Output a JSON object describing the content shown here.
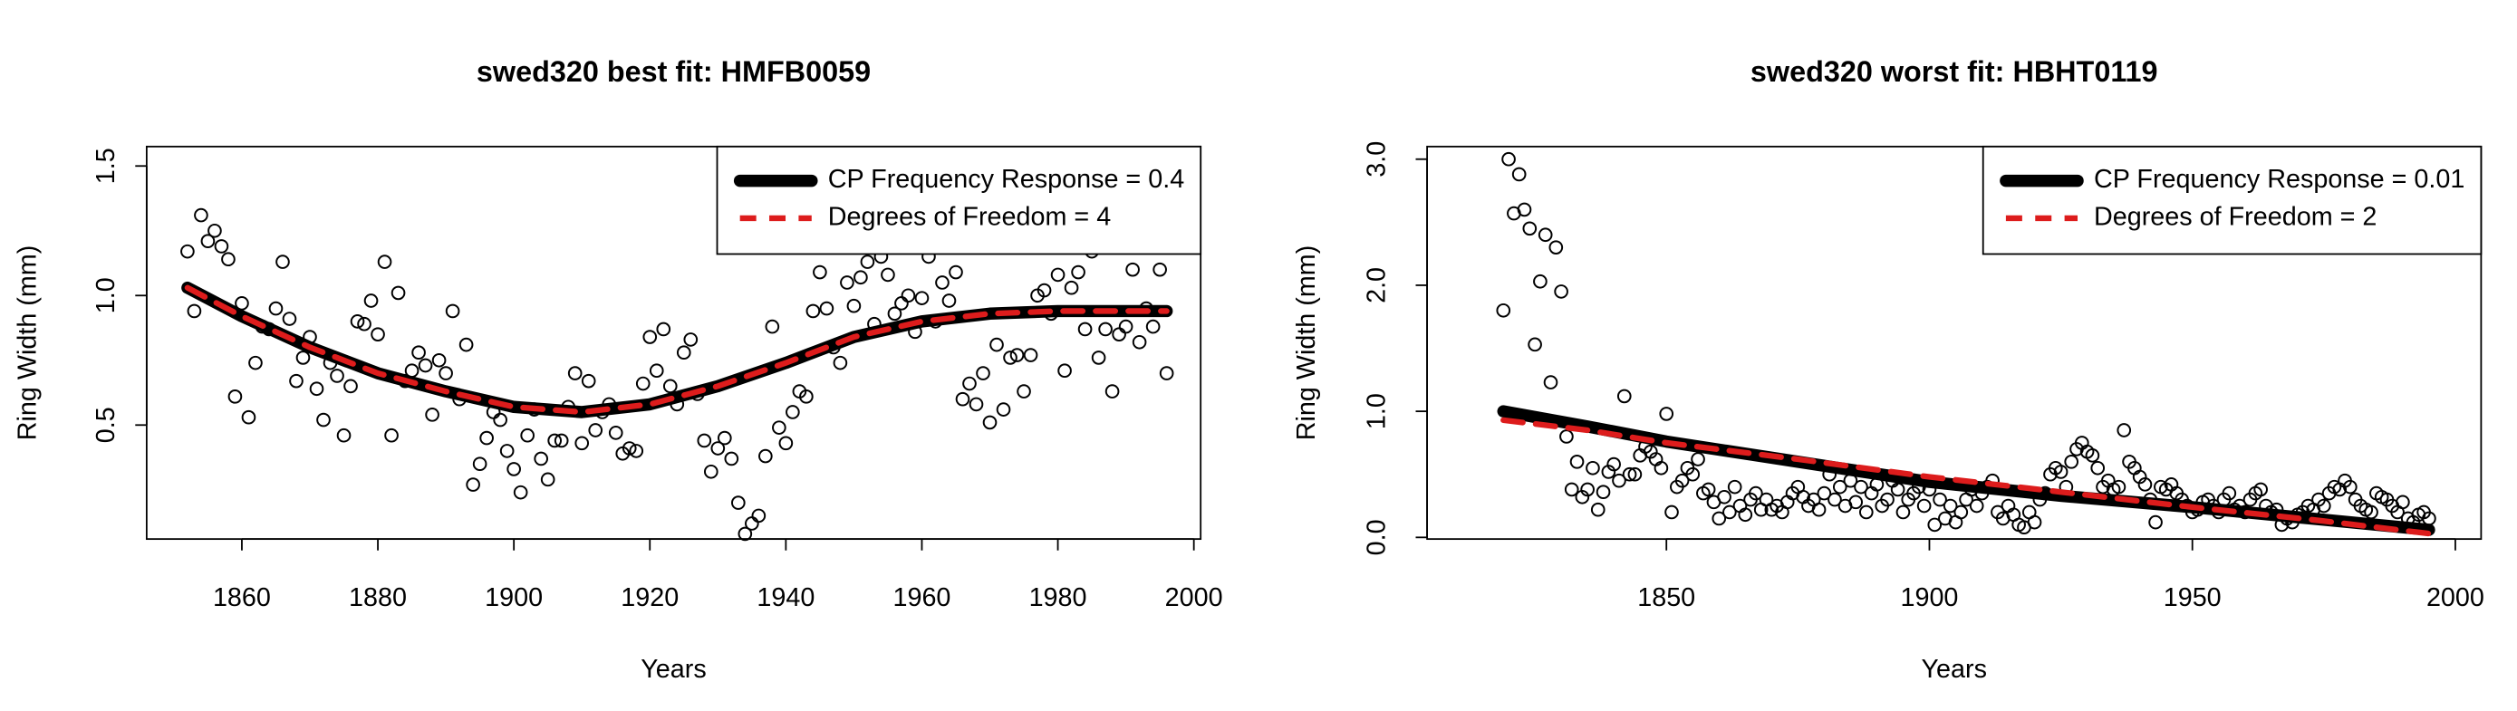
{
  "chart_data": [
    {
      "type": "scatter",
      "title": "swed320 best fit: HMFB0059",
      "xlabel": "Years",
      "ylabel": "Ring Width (mm)",
      "xlim": [
        1846,
        2001
      ],
      "ylim": [
        0.06,
        1.575
      ],
      "xticks": [
        1860,
        1880,
        1900,
        1920,
        1940,
        1960,
        1980,
        2000
      ],
      "yticks": [
        0.5,
        {
          "value": 1,
          "label": "1.0"
        },
        1.5
      ],
      "legend": "topright",
      "series": [
        {
          "color": "#000000",
          "marker": "open-circle",
          "x": [
            1852,
            1853,
            1854,
            1855,
            1856,
            1857,
            1858,
            1859,
            1860,
            1861,
            1862,
            1863,
            1864,
            1865,
            1866,
            1867,
            1868,
            1869,
            1870,
            1871,
            1872,
            1873,
            1874,
            1875,
            1876,
            1877,
            1878,
            1879,
            1880,
            1881,
            1882,
            1883,
            1884,
            1885,
            1886,
            1887,
            1888,
            1889,
            1890,
            1891,
            1892,
            1893,
            1894,
            1895,
            1896,
            1897,
            1898,
            1899,
            1900,
            1901,
            1902,
            1903,
            1904,
            1905,
            1906,
            1907,
            1908,
            1909,
            1910,
            1911,
            1912,
            1913,
            1914,
            1915,
            1916,
            1917,
            1918,
            1919,
            1920,
            1921,
            1922,
            1923,
            1924,
            1925,
            1926,
            1927,
            1928,
            1929,
            1930,
            1931,
            1932,
            1933,
            1934,
            1935,
            1936,
            1937,
            1938,
            1939,
            1940,
            1941,
            1942,
            1943,
            1944,
            1945,
            1946,
            1947,
            1948,
            1949,
            1950,
            1951,
            1952,
            1953,
            1954,
            1955,
            1956,
            1957,
            1958,
            1959,
            1960,
            1961,
            1962,
            1963,
            1964,
            1965,
            1966,
            1967,
            1968,
            1969,
            1970,
            1971,
            1972,
            1973,
            1974,
            1975,
            1976,
            1977,
            1978,
            1979,
            1980,
            1981,
            1982,
            1983,
            1984,
            1985,
            1986,
            1987,
            1988,
            1989,
            1990,
            1991,
            1992,
            1993,
            1994,
            1995,
            1996
          ],
          "values": [
            1.17,
            0.94,
            1.31,
            1.21,
            1.25,
            1.19,
            1.14,
            0.61,
            0.97,
            0.53,
            0.74,
            0.88,
            0.87,
            0.95,
            1.13,
            0.91,
            0.67,
            0.76,
            0.84,
            0.64,
            0.52,
            0.74,
            0.69,
            0.46,
            0.65,
            0.9,
            0.89,
            0.98,
            0.85,
            1.13,
            0.46,
            1.01,
            0.67,
            0.71,
            0.78,
            0.73,
            0.54,
            0.75,
            0.7,
            0.94,
            0.6,
            0.81,
            0.27,
            0.35,
            0.45,
            0.55,
            0.52,
            0.4,
            0.33,
            0.24,
            0.46,
            0.56,
            0.37,
            0.29,
            0.44,
            0.44,
            0.57,
            0.7,
            0.43,
            0.67,
            0.48,
            0.55,
            0.58,
            0.47,
            0.39,
            0.41,
            0.4,
            0.66,
            0.84,
            0.71,
            0.87,
            0.65,
            0.58,
            0.78,
            0.83,
            0.62,
            0.44,
            0.32,
            0.41,
            0.45,
            0.37,
            0.2,
            0.08,
            0.12,
            0.15,
            0.38,
            0.88,
            0.49,
            0.43,
            0.55,
            0.63,
            0.61,
            0.94,
            1.09,
            0.95,
            0.8,
            0.74,
            1.05,
            0.96,
            1.07,
            1.13,
            0.89,
            1.15,
            1.08,
            0.93,
            0.97,
            1,
            0.86,
            0.99,
            1.15,
            0.9,
            1.05,
            0.98,
            1.09,
            0.6,
            0.66,
            0.58,
            0.7,
            0.51,
            0.81,
            0.56,
            0.76,
            0.77,
            0.63,
            0.77,
            1,
            1.02,
            0.93,
            1.08,
            0.71,
            1.03,
            1.09,
            0.87,
            1.17,
            0.76,
            0.87,
            0.63,
            0.85,
            0.88,
            1.1,
            0.82,
            0.95,
            0.88,
            1.1,
            0.7
          ]
        },
        {
          "name": "CP Frequency Response = 0.4",
          "color": "#000000",
          "line": "solid",
          "x": [
            1852,
            1860,
            1870,
            1880,
            1890,
            1900,
            1910,
            1920,
            1930,
            1940,
            1950,
            1960,
            1970,
            1980,
            1996
          ],
          "values": [
            1.03,
            0.92,
            0.8,
            0.7,
            0.63,
            0.57,
            0.55,
            0.58,
            0.65,
            0.74,
            0.84,
            0.9,
            0.93,
            0.94,
            0.94
          ]
        },
        {
          "name": "Degrees of Freedom = 4",
          "color": "#dd1c1c",
          "line": "dashed",
          "x": [
            1852,
            1860,
            1870,
            1880,
            1890,
            1900,
            1910,
            1920,
            1930,
            1940,
            1950,
            1960,
            1970,
            1980,
            1996
          ],
          "values": [
            1.03,
            0.92,
            0.8,
            0.7,
            0.63,
            0.57,
            0.55,
            0.58,
            0.65,
            0.74,
            0.84,
            0.9,
            0.93,
            0.94,
            0.94
          ]
        }
      ]
    },
    {
      "type": "scatter",
      "title": "swed320 worst fit: HBHT0119",
      "xlabel": "Years",
      "ylabel": "Ring Width (mm)",
      "xlim": [
        1804.5,
        2004.9
      ],
      "ylim": [
        -0.013,
        3.1
      ],
      "xticks": [
        1850,
        1900,
        1950,
        2000
      ],
      "yticks": [
        {
          "value": 0,
          "label": "0.0"
        },
        {
          "value": 1,
          "label": "1.0"
        },
        {
          "value": 2,
          "label": "2.0"
        },
        {
          "value": 3,
          "label": "3.0"
        }
      ],
      "legend": "topright",
      "series": [
        {
          "color": "#000000",
          "marker": "open-circle",
          "x": [
            1819,
            1820,
            1821,
            1822,
            1823,
            1824,
            1825,
            1826,
            1827,
            1828,
            1829,
            1830,
            1831,
            1832,
            1833,
            1834,
            1835,
            1836,
            1837,
            1838,
            1839,
            1840,
            1841,
            1842,
            1843,
            1844,
            1845,
            1846,
            1847,
            1848,
            1849,
            1850,
            1851,
            1852,
            1853,
            1854,
            1855,
            1856,
            1857,
            1858,
            1859,
            1860,
            1861,
            1862,
            1863,
            1864,
            1865,
            1866,
            1867,
            1868,
            1869,
            1870,
            1871,
            1872,
            1873,
            1874,
            1875,
            1876,
            1877,
            1878,
            1879,
            1880,
            1881,
            1882,
            1883,
            1884,
            1885,
            1886,
            1887,
            1888,
            1889,
            1890,
            1891,
            1892,
            1893,
            1894,
            1895,
            1896,
            1897,
            1898,
            1899,
            1900,
            1901,
            1902,
            1903,
            1904,
            1905,
            1906,
            1907,
            1908,
            1909,
            1910,
            1911,
            1912,
            1913,
            1914,
            1915,
            1916,
            1917,
            1918,
            1919,
            1920,
            1921,
            1922,
            1923,
            1924,
            1925,
            1926,
            1927,
            1928,
            1929,
            1930,
            1931,
            1932,
            1933,
            1934,
            1935,
            1936,
            1937,
            1938,
            1939,
            1940,
            1941,
            1942,
            1943,
            1944,
            1945,
            1946,
            1947,
            1948,
            1949,
            1950,
            1951,
            1952,
            1953,
            1954,
            1955,
            1956,
            1957,
            1958,
            1959,
            1960,
            1961,
            1962,
            1963,
            1964,
            1965,
            1966,
            1967,
            1968,
            1969,
            1970,
            1971,
            1972,
            1973,
            1974,
            1975,
            1976,
            1977,
            1978,
            1979,
            1980,
            1981,
            1982,
            1983,
            1984,
            1985,
            1986,
            1987,
            1988,
            1989,
            1990,
            1991,
            1992,
            1993,
            1994,
            1995
          ],
          "values": [
            1.8,
            3,
            2.57,
            2.88,
            2.6,
            2.45,
            1.53,
            2.03,
            2.4,
            1.23,
            2.3,
            1.95,
            0.8,
            0.38,
            0.6,
            0.32,
            0.38,
            0.55,
            0.22,
            0.36,
            0.52,
            0.58,
            0.45,
            1.12,
            0.5,
            0.5,
            0.65,
            0.72,
            0.68,
            0.62,
            0.55,
            0.98,
            0.2,
            0.4,
            0.45,
            0.55,
            0.5,
            0.62,
            0.35,
            0.38,
            0.28,
            0.15,
            0.32,
            0.2,
            0.4,
            0.25,
            0.18,
            0.3,
            0.35,
            0.22,
            0.3,
            0.22,
            0.25,
            0.2,
            0.28,
            0.35,
            0.4,
            0.32,
            0.25,
            0.3,
            0.22,
            0.35,
            0.5,
            0.3,
            0.4,
            0.25,
            0.45,
            0.28,
            0.4,
            0.2,
            0.35,
            0.42,
            0.25,
            0.3,
            0.45,
            0.38,
            0.2,
            0.3,
            0.35,
            0.4,
            0.25,
            0.38,
            0.1,
            0.3,
            0.15,
            0.25,
            0.12,
            0.2,
            0.3,
            0.38,
            0.25,
            0.35,
            0.4,
            0.45,
            0.2,
            0.15,
            0.25,
            0.18,
            0.1,
            0.08,
            0.2,
            0.12,
            0.3,
            0.35,
            0.5,
            0.55,
            0.52,
            0.4,
            0.6,
            0.7,
            0.75,
            0.68,
            0.65,
            0.55,
            0.4,
            0.45,
            0.38,
            0.4,
            0.85,
            0.6,
            0.55,
            0.48,
            0.42,
            0.3,
            0.12,
            0.4,
            0.38,
            0.42,
            0.35,
            0.3,
            0.25,
            0.2,
            0.22,
            0.28,
            0.3,
            0.25,
            0.2,
            0.3,
            0.35,
            0.22,
            0.25,
            0.2,
            0.3,
            0.35,
            0.38,
            0.25,
            0.2,
            0.22,
            0.1,
            0.15,
            0.12,
            0.18,
            0.2,
            0.25,
            0.22,
            0.3,
            0.25,
            0.35,
            0.4,
            0.38,
            0.45,
            0.4,
            0.3,
            0.25,
            0.22,
            0.2,
            0.35,
            0.32,
            0.3,
            0.25,
            0.2,
            0.28,
            0.15,
            0.12,
            0.18,
            0.2,
            0.15
          ]
        },
        {
          "name": "CP Frequency Response = 0.01",
          "color": "#000000",
          "line": "solid",
          "x": [
            1819,
            1835,
            1850,
            1875,
            1900,
            1925,
            1950,
            1975,
            1995
          ],
          "values": [
            1,
            0.88,
            0.76,
            0.6,
            0.44,
            0.33,
            0.24,
            0.14,
            0.06
          ]
        },
        {
          "name": "Degrees of Freedom = 2",
          "color": "#dd1c1c",
          "line": "dashed",
          "x": [
            1819,
            1835,
            1850,
            1875,
            1900,
            1925,
            1950,
            1975,
            1995
          ],
          "values": [
            0.93,
            0.85,
            0.75,
            0.62,
            0.48,
            0.36,
            0.24,
            0.13,
            0.03
          ]
        }
      ]
    }
  ]
}
